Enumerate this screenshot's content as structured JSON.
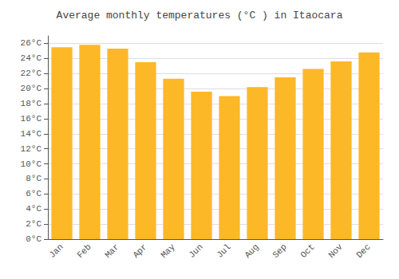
{
  "chart_data": {
    "type": "bar",
    "title": "Average monthly temperatures (°C ) in Itaocara",
    "categories": [
      "Jan",
      "Feb",
      "Mar",
      "Apr",
      "May",
      "Jun",
      "Jul",
      "Aug",
      "Sep",
      "Oct",
      "Nov",
      "Dec"
    ],
    "values": [
      25.5,
      25.8,
      25.3,
      23.5,
      21.3,
      19.6,
      19.0,
      20.2,
      21.5,
      22.6,
      23.6,
      24.8
    ],
    "color": "#FDB827",
    "ylim": [
      0,
      27
    ],
    "yticks": [
      {
        "value": 0,
        "label": "0°C"
      },
      {
        "value": 2,
        "label": "2°C"
      },
      {
        "value": 4,
        "label": "4°C"
      },
      {
        "value": 6,
        "label": "6°C"
      },
      {
        "value": 8,
        "label": "8°C"
      },
      {
        "value": 10,
        "label": "10°C"
      },
      {
        "value": 12,
        "label": "12°C"
      },
      {
        "value": 14,
        "label": "14°C"
      },
      {
        "value": 16,
        "label": "16°C"
      },
      {
        "value": 18,
        "label": "18°C"
      },
      {
        "value": 20,
        "label": "20°C"
      },
      {
        "value": 22,
        "label": "22°C"
      },
      {
        "value": 24,
        "label": "24°C"
      },
      {
        "value": 26,
        "label": "26°C"
      }
    ],
    "grid": true
  }
}
